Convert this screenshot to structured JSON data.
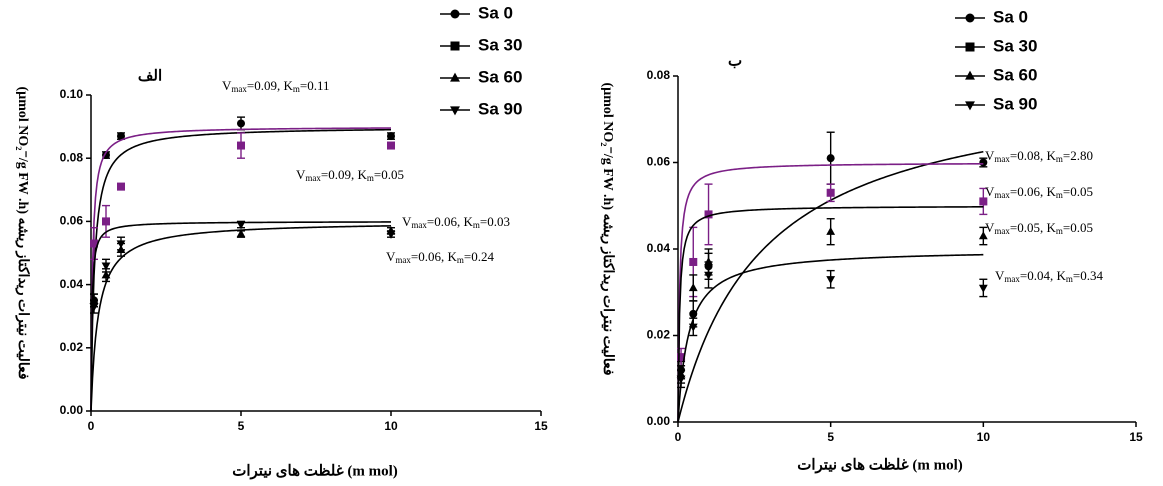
{
  "chart_data": [
    {
      "type": "scatter",
      "panel_label": "الف",
      "x_label": "(m mol) غلظت های نیترات",
      "y_label": "فعالیت نیترات ریداکتاز ریشه (µmol NO₂⁻/g FW .h)",
      "x": [
        0.1,
        0.5,
        1,
        5,
        10
      ],
      "xlim": [
        0,
        15
      ],
      "xticks": [
        0,
        5,
        10,
        15
      ],
      "ylim": [
        0,
        0.1
      ],
      "yticks": [
        {
          "value": 0,
          "label": "0.00"
        },
        0.02,
        0.04,
        0.06,
        0.08,
        {
          "value": 0.1,
          "label": "0.10"
        }
      ],
      "grid": false,
      "series": [
        {
          "name": "Sa 0",
          "color": "#000000",
          "marker": "circle",
          "values": [
            0.035,
            0.081,
            0.087,
            0.091,
            0.087
          ],
          "errors": [
            0.002,
            0.001,
            0.001,
            0.002,
            0.001
          ],
          "vmax": 0.09,
          "km": 0.11,
          "fit_label": [
            "V",
            "max",
            "=0.09, K",
            "m",
            "=0.11"
          ]
        },
        {
          "name": "Sa 30",
          "color": "#7b1f86",
          "marker": "square",
          "values": [
            0.053,
            0.06,
            0.071,
            0.084,
            0.084
          ],
          "errors": [
            0.005,
            0.005,
            0.001,
            0.004,
            0.001
          ],
          "vmax": 0.09,
          "km": 0.05,
          "fit_label": [
            "V",
            "max",
            "=0.09, K",
            "m",
            "=0.05"
          ]
        },
        {
          "name": "Sa 60",
          "color": "#000000",
          "marker": "triangle-up",
          "values": [
            0.035,
            0.043,
            0.051,
            0.056,
            0.057
          ],
          "errors": [
            0.002,
            0.002,
            0.002,
            0.001,
            0.001
          ],
          "vmax": 0.06,
          "km": 0.24,
          "fit_label": [
            "V",
            "max",
            "=0.06, K",
            "m",
            "=0.24"
          ]
        },
        {
          "name": "Sa 90",
          "color": "#000000",
          "marker": "triangle-down",
          "values": [
            0.033,
            0.046,
            0.053,
            0.059,
            0.056
          ],
          "errors": [
            0.002,
            0.002,
            0.002,
            0.001,
            0.001
          ],
          "vmax": 0.06,
          "km": 0.03,
          "fit_label": [
            "V",
            "max",
            "=0.06, K",
            "m",
            "=0.03"
          ]
        }
      ]
    },
    {
      "type": "scatter",
      "panel_label": "ب",
      "x_label": "(m mol) غلظت های نیترات",
      "y_label": "فعالیت نیترات ریداکتاز ریشه (µmol NO₂⁻/g FW .h)",
      "x": [
        0.1,
        0.5,
        1,
        5,
        10
      ],
      "xlim": [
        0,
        15
      ],
      "xticks": [
        0,
        5,
        10,
        15
      ],
      "ylim": [
        0,
        0.08
      ],
      "yticks": [
        {
          "value": 0,
          "label": "0.00"
        },
        0.02,
        0.04,
        0.06,
        0.08
      ],
      "grid": false,
      "series": [
        {
          "name": "Sa 0",
          "color": "#000000",
          "marker": "circle",
          "values": [
            0.012,
            0.025,
            0.036,
            0.061,
            0.06
          ],
          "errors": [
            0.002,
            0.003,
            0.003,
            0.006,
            0.001
          ],
          "vmax": 0.08,
          "km": 2.8,
          "fit_label": [
            "V",
            "max",
            "=0.08, K",
            "m",
            "=2.80"
          ]
        },
        {
          "name": "Sa 30",
          "color": "#7b1f86",
          "marker": "square",
          "values": [
            0.015,
            0.037,
            0.048,
            0.053,
            0.051
          ],
          "errors": [
            0.002,
            0.008,
            0.007,
            0.002,
            0.003
          ],
          "vmax": 0.06,
          "km": 0.05,
          "fit_label": [
            "V",
            "max",
            "=0.06, K",
            "m",
            "=0.05"
          ]
        },
        {
          "name": "Sa 60",
          "color": "#000000",
          "marker": "triangle-up",
          "values": [
            0.011,
            0.031,
            0.037,
            0.044,
            0.043
          ],
          "errors": [
            0.002,
            0.003,
            0.003,
            0.003,
            0.002
          ],
          "vmax": 0.05,
          "km": 0.05,
          "fit_label": [
            "V",
            "max",
            "=0.05, K",
            "m",
            "=0.05"
          ]
        },
        {
          "name": "Sa 90",
          "color": "#000000",
          "marker": "triangle-down",
          "values": [
            0.01,
            0.022,
            0.034,
            0.033,
            0.031
          ],
          "errors": [
            0.002,
            0.002,
            0.003,
            0.002,
            0.002
          ],
          "vmax": 0.04,
          "km": 0.34,
          "fit_label": [
            "V",
            "max",
            "=0.04, K",
            "m",
            "=0.34"
          ]
        }
      ]
    }
  ]
}
